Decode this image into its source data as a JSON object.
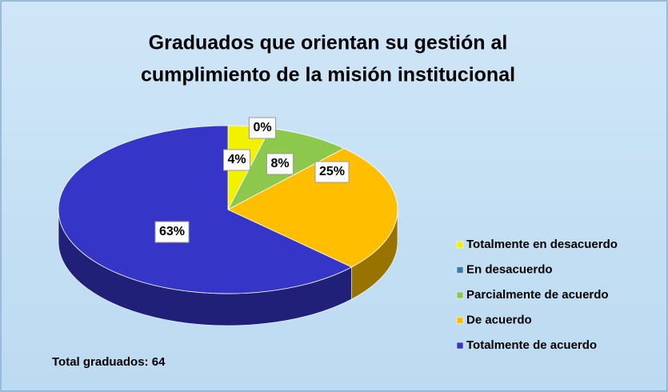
{
  "chart_data": {
    "type": "pie",
    "title": [
      "Graduados que orientan su gestión al",
      "cumplimiento de la misión institucional"
    ],
    "categories": [
      "Totalmente en desacuerdo",
      "En desacuerdo",
      "Parcialmente de acuerdo",
      "De acuerdo",
      "Totalmente de acuerdo"
    ],
    "values": [
      4,
      0,
      8,
      25,
      63
    ],
    "value_labels": [
      "4%",
      "0%",
      "8%",
      "25%",
      "63%"
    ],
    "colors": [
      "#f2f200",
      "#3d7ab8",
      "#8cc84b",
      "#ffbf00",
      "#3535c8"
    ],
    "annotation": "Total graduados: 64",
    "legend": "right"
  }
}
